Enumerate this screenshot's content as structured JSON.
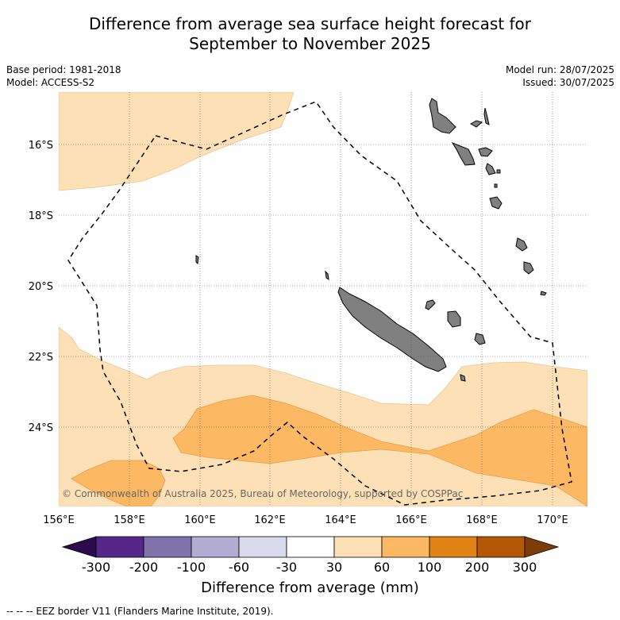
{
  "title_line1": "Difference from average sea surface height forecast for",
  "title_line2": "September to November 2025",
  "base_period": "Base period: 1981-2018",
  "model": "Model: ACCESS-S2",
  "model_run": "Model run: 28/07/2025",
  "issued": "Issued: 30/07/2025",
  "lat_ticks": [
    "16°S",
    "18°S",
    "20°S",
    "22°S",
    "24°S"
  ],
  "lon_ticks": [
    "156°E",
    "158°E",
    "160°E",
    "162°E",
    "164°E",
    "166°E",
    "168°E",
    "170°E"
  ],
  "copyright": "© Commonwealth of Australia 2025, Bureau of Meteorology, supported by COSPPac",
  "colorbar": {
    "ticks": [
      "-300",
      "-200",
      "-100",
      "-60",
      "-30",
      "30",
      "60",
      "100",
      "200",
      "300"
    ],
    "colors": [
      "#2d0a4e",
      "#542788",
      "#8073ac",
      "#b2abd2",
      "#d8daeb",
      "#ffffff",
      "#fee0b6",
      "#fdb863",
      "#e08214",
      "#b35806",
      "#7f3b08"
    ]
  },
  "colorbar_label": "Difference from average (mm)",
  "eez_legend": "--  --  -- EEZ border V11 (Flanders Marine Institute, 2019).",
  "land_color": "#808080"
}
